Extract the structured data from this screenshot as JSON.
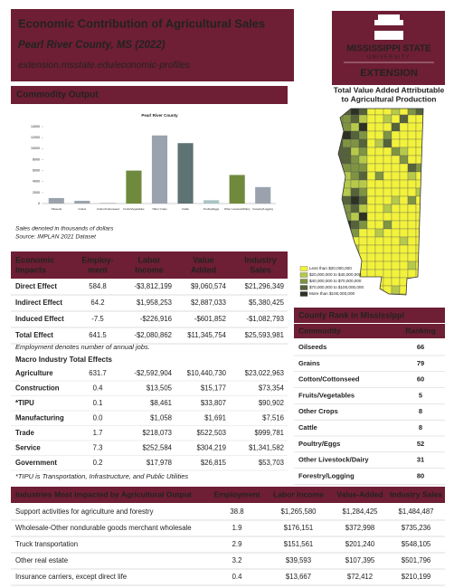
{
  "header": {
    "title": "Economic Contribution of Agricultural Sales",
    "subtitle": "Pearl River County, MS (2022)",
    "url": "extension.msstate.edu/economic-profiles"
  },
  "logo": {
    "university": "MISSISSIPPI STATE",
    "tagline": "UNIVERSITY",
    "unit": "EXTENSION"
  },
  "map": {
    "title": [
      "Total Value Added Attributable",
      "to Agricultural Production"
    ],
    "legend": [
      {
        "label": "Less than $20,000,000",
        "color": "#f2f23c"
      },
      {
        "label": "$20,000,000 to $40,000,000",
        "color": "#b7c94a"
      },
      {
        "label": "$40,000,000 to $70,000,000",
        "color": "#7f9443"
      },
      {
        "label": "$70,000,000 to $100,000,000",
        "color": "#56633a"
      },
      {
        "label": "More than $100,000,000",
        "color": "#2c3123"
      }
    ]
  },
  "commodity_output": {
    "title": "Commodity Output",
    "notes": [
      "Sales denoted in thousands of dollars",
      "Source: IMPLAN 2021 Dataset"
    ]
  },
  "chart_data": {
    "type": "bar",
    "title": "Pearl River County",
    "categories": [
      "Oilseeds",
      "Grains",
      "Cotton/Cottonseed",
      "Fruits/Vegetables",
      "Other Crops",
      "Cattle",
      "Poultry/Eggs",
      "Other Livestock/Dairy",
      "Forestry/Logging"
    ],
    "values": [
      1000,
      500,
      100,
      6000,
      12400,
      11000,
      600,
      5200,
      3000
    ],
    "colors": [
      "#9aa3ad",
      "#9aa3ad",
      "#9aa3ad",
      "#6f8a3c",
      "#9aa3ad",
      "#5e7373",
      "#a8c4c4",
      "#6f8a3c",
      "#9aa3ad"
    ],
    "ylim": [
      0,
      14000
    ],
    "yticks": [
      0,
      2000,
      4000,
      6000,
      8000,
      10000,
      12000,
      14000
    ]
  },
  "economic_impacts": {
    "header": [
      [
        "Economic",
        "Impacts"
      ],
      [
        "Employ-",
        "ment"
      ],
      [
        "Labor",
        "Income"
      ],
      [
        "Value",
        "Added"
      ],
      [
        "Industry",
        "Sales"
      ]
    ],
    "rows": [
      [
        "Direct Effect",
        "584.8",
        "-$3,812,199",
        "$9,060,574",
        "$21,296,349"
      ],
      [
        "Indirect Effect",
        "64.2",
        "$1,958,253",
        "$2,887,033",
        "$5,380,425"
      ],
      [
        "Induced Effect",
        "-7.5",
        "-$226,916",
        "-$601,852",
        "-$1,082,793"
      ],
      [
        "Total Effect",
        "641.5",
        "-$2,080,862",
        "$11,345,754",
        "$25,593,981"
      ]
    ],
    "note": "Employment denotes number of annual jobs."
  },
  "macro": {
    "title": "Macro Industry Total Effects",
    "rows": [
      [
        "Agriculture",
        "631.7",
        "-$2,592,904",
        "$10,440,730",
        "$23,022,963"
      ],
      [
        "Construction",
        "0.4",
        "$13,505",
        "$15,177",
        "$73,354"
      ],
      [
        "*TIPU",
        "0.1",
        "$8,461",
        "$33,807",
        "$90,902"
      ],
      [
        "Manufacturing",
        "0.0",
        "$1,058",
        "$1,691",
        "$7,516"
      ],
      [
        "Trade",
        "1.7",
        "$218,073",
        "$522,503",
        "$999,781"
      ],
      [
        "Service",
        "7.3",
        "$252,584",
        "$304,219",
        "$1,341,582"
      ],
      [
        "Government",
        "0.2",
        "$17,978",
        "$26,815",
        "$53,703"
      ]
    ],
    "note": "*TIPU is Transportation, Infrastructure, and Public Utilities"
  },
  "county_rank": {
    "title": "County Rank in Mississippi",
    "header": [
      "Commodity",
      "Ranking"
    ],
    "rows": [
      [
        "Oilseeds",
        "66"
      ],
      [
        "Grains",
        "79"
      ],
      [
        "Cotton/Cottonseed",
        "60"
      ],
      [
        "Fruits/Vegetables",
        "5"
      ],
      [
        "Other Crops",
        "8"
      ],
      [
        "Cattle",
        "8"
      ],
      [
        "Poultry/Eggs",
        "52"
      ],
      [
        "Other Livestock/Dairy",
        "31"
      ],
      [
        "Forestry/Logging",
        "80"
      ]
    ]
  },
  "industries": {
    "header": [
      "Industries Most Impacted by Agricultural Output",
      "Employment",
      "Labor Income",
      "Value-Added",
      "Industry Sales"
    ],
    "rows": [
      [
        "Support activities for agriculture and forestry",
        "38.8",
        "$1,265,580",
        "$1,284,425",
        "$1,484,487"
      ],
      [
        "Wholesale-Other nondurable goods merchant wholesale",
        "1.9",
        "$176,151",
        "$372,998",
        "$735,236"
      ],
      [
        "Truck transportation",
        "2.9",
        "$151,561",
        "$201,240",
        "$548,105"
      ],
      [
        "Other real estate",
        "3.2",
        "$39,593",
        "$107,395",
        "$501,796"
      ],
      [
        "Insurance carriers, except direct life",
        "0.4",
        "$13,667",
        "$72,412",
        "$210,199"
      ]
    ]
  }
}
